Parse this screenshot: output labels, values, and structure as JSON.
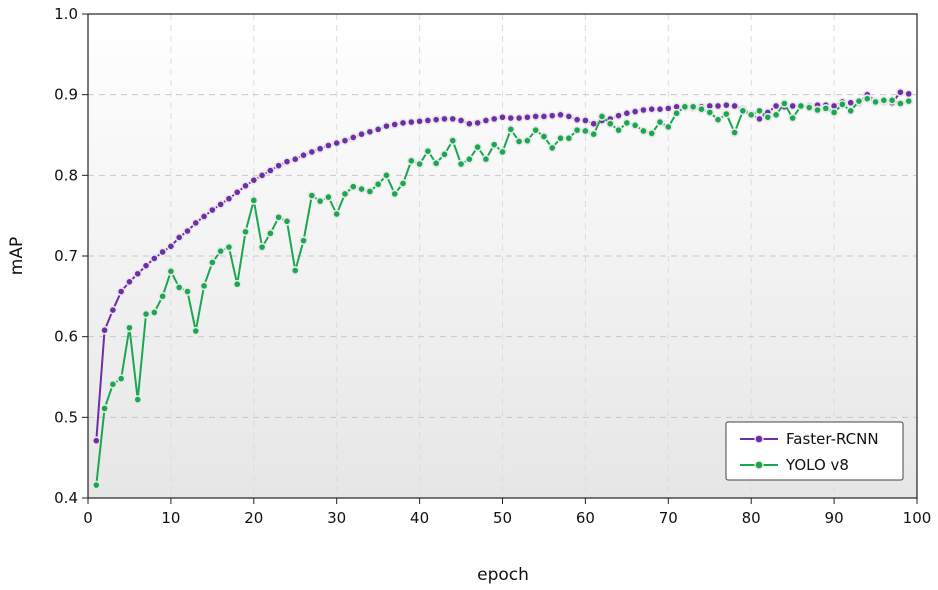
{
  "chart_data": {
    "type": "line",
    "title": "",
    "xlabel": "epoch",
    "ylabel": "mAP",
    "xlim": [
      0,
      100
    ],
    "ylim": [
      0.4,
      1.0
    ],
    "xticks": [
      0,
      10,
      20,
      30,
      40,
      50,
      60,
      70,
      80,
      90,
      100
    ],
    "yticks": [
      0.4,
      0.5,
      0.6,
      0.7,
      0.8,
      0.9,
      1.0
    ],
    "grid": true,
    "legend_position": "bottom-right",
    "series": [
      {
        "name": "Faster-RCNN",
        "color": "#6f2da8",
        "x": [
          1,
          2,
          3,
          4,
          5,
          6,
          7,
          8,
          9,
          10,
          11,
          12,
          13,
          14,
          15,
          16,
          17,
          18,
          19,
          20,
          21,
          22,
          23,
          24,
          25,
          26,
          27,
          28,
          29,
          30,
          31,
          32,
          33,
          34,
          35,
          36,
          37,
          38,
          39,
          40,
          41,
          42,
          43,
          44,
          45,
          46,
          47,
          48,
          49,
          50,
          51,
          52,
          53,
          54,
          55,
          56,
          57,
          58,
          59,
          60,
          61,
          62,
          63,
          64,
          65,
          66,
          67,
          68,
          69,
          70,
          71,
          72,
          73,
          74,
          75,
          76,
          77,
          78,
          79,
          80,
          81,
          82,
          83,
          84,
          85,
          86,
          87,
          88,
          89,
          90,
          91,
          92,
          93,
          94,
          95,
          96,
          97,
          98,
          99
        ],
        "values": [
          0.471,
          0.608,
          0.633,
          0.656,
          0.668,
          0.678,
          0.688,
          0.697,
          0.705,
          0.712,
          0.723,
          0.731,
          0.741,
          0.749,
          0.757,
          0.764,
          0.771,
          0.779,
          0.787,
          0.794,
          0.8,
          0.806,
          0.812,
          0.817,
          0.82,
          0.825,
          0.829,
          0.833,
          0.837,
          0.84,
          0.843,
          0.847,
          0.851,
          0.854,
          0.857,
          0.861,
          0.863,
          0.865,
          0.866,
          0.867,
          0.868,
          0.869,
          0.87,
          0.87,
          0.868,
          0.864,
          0.865,
          0.868,
          0.87,
          0.872,
          0.871,
          0.871,
          0.872,
          0.873,
          0.873,
          0.874,
          0.875,
          0.873,
          0.869,
          0.868,
          0.864,
          0.868,
          0.87,
          0.874,
          0.877,
          0.879,
          0.881,
          0.882,
          0.882,
          0.883,
          0.885,
          0.884,
          0.884,
          0.885,
          0.886,
          0.886,
          0.887,
          0.886,
          0.882,
          0.876,
          0.87,
          0.878,
          0.886,
          0.885,
          0.886,
          0.886,
          0.886,
          0.887,
          0.887,
          0.886,
          0.891,
          0.89,
          0.89,
          0.9,
          0.892,
          0.891,
          0.89,
          0.903,
          0.901
        ]
      },
      {
        "name": "YOLO v8",
        "color": "#19a84f",
        "x": [
          1,
          2,
          3,
          4,
          5,
          6,
          7,
          8,
          9,
          10,
          11,
          12,
          13,
          14,
          15,
          16,
          17,
          18,
          19,
          20,
          21,
          22,
          23,
          24,
          25,
          26,
          27,
          28,
          29,
          30,
          31,
          32,
          33,
          34,
          35,
          36,
          37,
          38,
          39,
          40,
          41,
          42,
          43,
          44,
          45,
          46,
          47,
          48,
          49,
          50,
          51,
          52,
          53,
          54,
          55,
          56,
          57,
          58,
          59,
          60,
          61,
          62,
          63,
          64,
          65,
          66,
          67,
          68,
          69,
          70,
          71,
          72,
          73,
          74,
          75,
          76,
          77,
          78,
          79,
          80,
          81,
          82,
          83,
          84,
          85,
          86,
          87,
          88,
          89,
          90,
          91,
          92,
          93,
          94,
          95,
          96,
          97,
          98,
          99
        ],
        "values": [
          0.416,
          0.511,
          0.541,
          0.548,
          0.611,
          0.522,
          0.628,
          0.63,
          0.65,
          0.681,
          0.661,
          0.656,
          0.607,
          0.663,
          0.692,
          0.706,
          0.711,
          0.665,
          0.73,
          0.769,
          0.711,
          0.728,
          0.748,
          0.743,
          0.682,
          0.719,
          0.775,
          0.768,
          0.773,
          0.752,
          0.777,
          0.786,
          0.783,
          0.78,
          0.789,
          0.8,
          0.777,
          0.79,
          0.818,
          0.814,
          0.83,
          0.815,
          0.826,
          0.843,
          0.814,
          0.82,
          0.835,
          0.82,
          0.838,
          0.829,
          0.857,
          0.842,
          0.843,
          0.856,
          0.848,
          0.834,
          0.846,
          0.846,
          0.856,
          0.855,
          0.851,
          0.873,
          0.864,
          0.856,
          0.865,
          0.862,
          0.855,
          0.852,
          0.866,
          0.86,
          0.877,
          0.885,
          0.885,
          0.882,
          0.878,
          0.869,
          0.876,
          0.853,
          0.88,
          0.875,
          0.88,
          0.872,
          0.875,
          0.889,
          0.871,
          0.886,
          0.884,
          0.881,
          0.883,
          0.878,
          0.888,
          0.88,
          0.892,
          0.895,
          0.891,
          0.893,
          0.893,
          0.889,
          0.892
        ]
      }
    ]
  }
}
